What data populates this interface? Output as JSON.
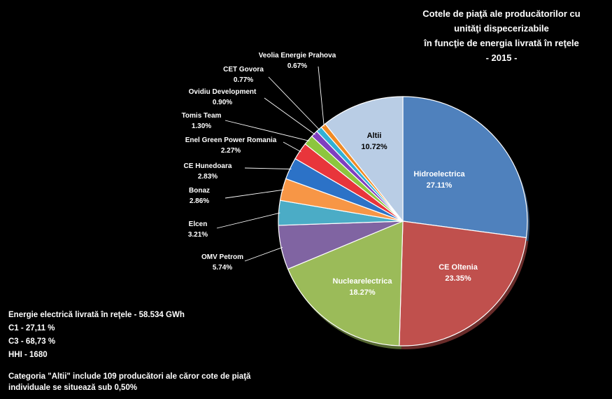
{
  "chart_data": {
    "type": "pie",
    "title_lines": [
      "Cotele de piaţă ale producătorilor cu",
      "unităţi dispecerizabile",
      "în funcţie de energia livrată în reţele",
      "- 2015 -"
    ],
    "slices": [
      {
        "label": "Hidroelectrica",
        "value_label": "27.11%",
        "value": 27.11,
        "color": "#4f81bd"
      },
      {
        "label": "CE Oltenia",
        "value_label": "23.35%",
        "value": 23.35,
        "color": "#c0504d"
      },
      {
        "label": "Nuclearelectrica",
        "value_label": "18.27%",
        "value": 18.27,
        "color": "#9bbb59"
      },
      {
        "label": "OMV Petrom",
        "value_label": "5.74%",
        "value": 5.74,
        "color": "#8064a2"
      },
      {
        "label": "Elcen",
        "value_label": "3.21%",
        "value": 3.21,
        "color": "#4bacc6"
      },
      {
        "label": "Bonaz",
        "value_label": "2.86%",
        "value": 2.86,
        "color": "#f79646"
      },
      {
        "label": "CE Hunedoara",
        "value_label": "2.83%",
        "value": 2.83,
        "color": "#2c72c7"
      },
      {
        "label": "Enel Green Power Romania",
        "value_label": "2.27%",
        "value": 2.27,
        "color": "#e8353b"
      },
      {
        "label": "Tomis Team",
        "value_label": "1.30%",
        "value": 1.3,
        "color": "#8cc63e"
      },
      {
        "label": "Ovidiu Development",
        "value_label": "0.90%",
        "value": 0.9,
        "color": "#7f3fbf"
      },
      {
        "label": "CET Govora",
        "value_label": "0.77%",
        "value": 0.77,
        "color": "#31b1d5"
      },
      {
        "label": "Veolia Energie Prahova",
        "value_label": "0.67%",
        "value": 0.67,
        "color": "#f08a24"
      },
      {
        "label": "Altii",
        "value_label": "10.72%",
        "value": 10.72,
        "color": "#b9cde5"
      }
    ],
    "start_angle_deg": 0,
    "direction": "clockwise"
  },
  "notes": {
    "energy": "Energie electrică livrată în reţele - 58.534 GWh",
    "c1": "C1 - 27,11 %",
    "c3": "C3 - 68,73 %",
    "hhi": "HHI - 1680",
    "others": "Categoria \"Altii\" include 109 producători ale căror cote de piaţă individuale se situează sub 0,50%"
  }
}
